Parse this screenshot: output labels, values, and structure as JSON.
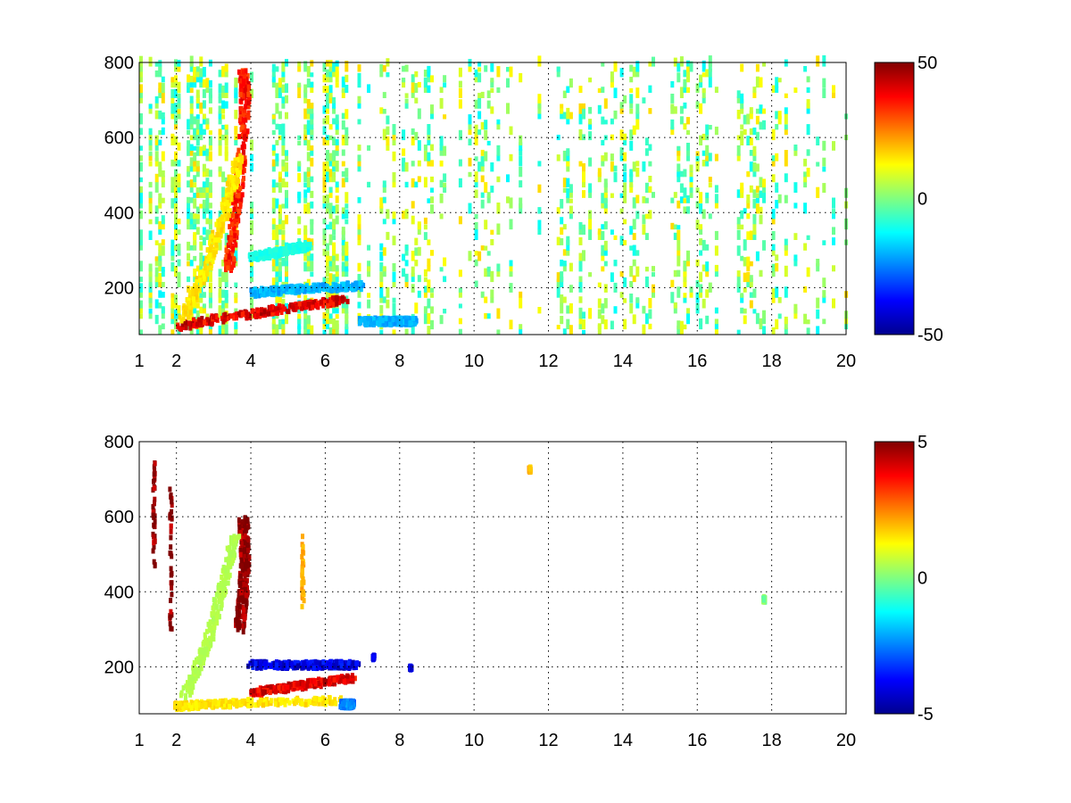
{
  "chart_data": [
    {
      "type": "heatmap",
      "title": "",
      "xlabel": "",
      "ylabel": "",
      "xlim": [
        1,
        20
      ],
      "ylim": [
        75,
        800
      ],
      "xticks": [
        1,
        2,
        4,
        6,
        8,
        10,
        12,
        14,
        16,
        18,
        20
      ],
      "yticks": [
        200,
        400,
        600,
        800
      ],
      "grid": true,
      "colormap": "jet",
      "clim": [
        -50,
        50
      ],
      "colorbar_ticks": [
        50,
        0,
        -50
      ],
      "features": [
        {
          "kind": "ridge",
          "x": [
            2.0,
            3.0,
            4.0,
            5.0,
            6.0,
            6.5
          ],
          "y": [
            95,
            115,
            130,
            145,
            160,
            170
          ],
          "value": 40
        },
        {
          "kind": "ridge",
          "x": [
            3.4,
            3.6,
            3.75,
            3.85,
            3.8
          ],
          "y": [
            250,
            400,
            550,
            700,
            780
          ],
          "value": 35
        },
        {
          "kind": "ridge",
          "x": [
            2.2,
            2.8,
            3.3,
            3.7
          ],
          "y": [
            120,
            250,
            400,
            550
          ],
          "value": 15
        },
        {
          "kind": "band",
          "x": [
            4.0,
            5.0,
            6.0,
            7.0
          ],
          "y": [
            185,
            195,
            200,
            205
          ],
          "value": -20
        },
        {
          "kind": "band",
          "x": [
            4.0,
            5.0,
            5.5
          ],
          "y": [
            280,
            300,
            310
          ],
          "value": -10
        },
        {
          "kind": "band",
          "x": [
            7.0,
            7.8,
            8.4
          ],
          "y": [
            110,
            110,
            110
          ],
          "value": -20
        }
      ]
    },
    {
      "type": "heatmap",
      "title": "",
      "xlabel": "",
      "ylabel": "",
      "xlim": [
        1,
        20
      ],
      "ylim": [
        75,
        800
      ],
      "xticks": [
        1,
        2,
        4,
        6,
        8,
        10,
        12,
        14,
        16,
        18,
        20
      ],
      "yticks": [
        200,
        400,
        600,
        800
      ],
      "grid": true,
      "colormap": "jet",
      "clim": [
        -5,
        5
      ],
      "colorbar_ticks": [
        5,
        0,
        -5
      ],
      "features": [
        {
          "kind": "ridge",
          "x": [
            3.7,
            3.8,
            3.85,
            3.8
          ],
          "y": [
            300,
            400,
            500,
            600
          ],
          "value": 5
        },
        {
          "kind": "ridge",
          "x": [
            4.0,
            5.0,
            6.0,
            6.7
          ],
          "y": [
            130,
            145,
            160,
            170
          ],
          "value": 4
        },
        {
          "kind": "ridge",
          "x": [
            2.2,
            2.8,
            3.2,
            3.6
          ],
          "y": [
            120,
            250,
            400,
            550
          ],
          "value": 0.5
        },
        {
          "kind": "ridge",
          "x": [
            2.0,
            3.0,
            4.0,
            6.5
          ],
          "y": [
            95,
            100,
            105,
            110
          ],
          "value": 1.5
        },
        {
          "kind": "band",
          "x": [
            4.0,
            5.0,
            6.0,
            6.8
          ],
          "y": [
            205,
            205,
            205,
            205
          ],
          "value": -4
        },
        {
          "kind": "band",
          "x": [
            6.5,
            6.7
          ],
          "y": [
            100,
            100
          ],
          "value": -2.5
        },
        {
          "kind": "spot",
          "x": [
            1.4,
            1.4
          ],
          "y": [
            450,
            750
          ],
          "value": 5
        },
        {
          "kind": "spot",
          "x": [
            1.85,
            1.85
          ],
          "y": [
            300,
            700
          ],
          "value": 5
        },
        {
          "kind": "spot",
          "x": [
            5.4,
            5.4
          ],
          "y": [
            350,
            550
          ],
          "value": 2
        },
        {
          "kind": "spot",
          "x": [
            7.3,
            7.3
          ],
          "y": [
            220,
            230
          ],
          "value": -4
        },
        {
          "kind": "spot",
          "x": [
            8.3,
            8.3
          ],
          "y": [
            195,
            200
          ],
          "value": -4
        },
        {
          "kind": "spot",
          "x": [
            11.5,
            11.5
          ],
          "y": [
            720,
            730
          ],
          "value": 2
        },
        {
          "kind": "spot",
          "x": [
            17.8,
            17.8
          ],
          "y": [
            375,
            385
          ],
          "value": 0
        }
      ]
    }
  ]
}
